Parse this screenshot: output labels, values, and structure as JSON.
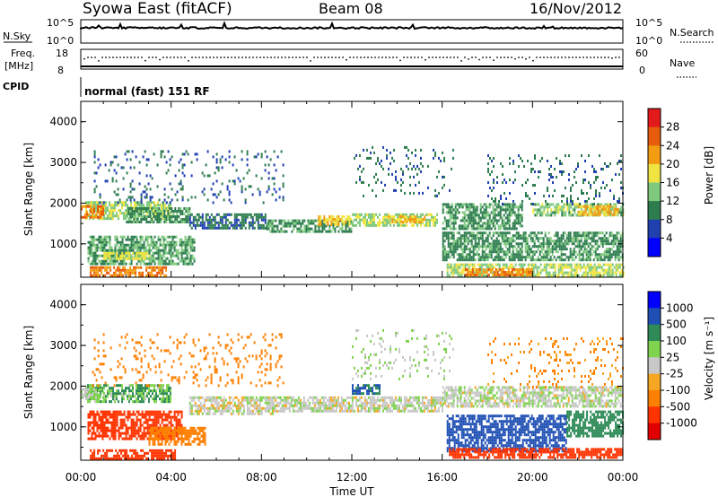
{
  "header": {
    "title": "Syowa East (fitACF)",
    "beam": "Beam 08",
    "date": "16/Nov/2012"
  },
  "nsky_panel": {
    "left_label": "N.Sky",
    "left_ticks": [
      "10^5",
      "10^0"
    ],
    "right_label": "N.Search",
    "right_ticks": [
      "10^5",
      "10^0"
    ]
  },
  "freq_panel": {
    "left_label_1": "Freq.",
    "left_label_2": "[MHz]",
    "left_ticks": [
      "18",
      "8"
    ],
    "right_label": "Nave",
    "right_ticks": [
      "60",
      "0"
    ]
  },
  "cpid": {
    "label": "CPID",
    "text": "normal (fast) 151 RF"
  },
  "colors": {
    "power_scale": [
      "#0000ff",
      "#2040b0",
      "#2e7d4f",
      "#7fc97f",
      "#f0e442",
      "#f39c12",
      "#e85a0c",
      "#e31a1c"
    ],
    "velocity_scale": [
      "#0000ff",
      "#1f4fb4",
      "#2e8b57",
      "#7fd34e",
      "#c8c8c8",
      "#f5a623",
      "#ff7f00",
      "#ff3300",
      "#e00000"
    ]
  },
  "chart_data": [
    {
      "type": "heatmap",
      "name": "power",
      "ylabel": "Slant Range [km]",
      "yticks": [
        "1000",
        "2000",
        "3000",
        "4000"
      ],
      "ylim": [
        180,
        4500
      ],
      "xticks": [
        "00:00",
        "04:00",
        "08:00",
        "12:00",
        "16:00",
        "20:00",
        "00:00"
      ],
      "colorbar_label": "Power [dB]",
      "colorbar_ticks": [
        "4",
        "8",
        "12",
        "16",
        "20",
        "24",
        "28"
      ],
      "colorbar_range": [
        0,
        30
      ],
      "regions": [
        {
          "t": [
            0.2,
            4.0
          ],
          "r": [
            1600,
            2050
          ],
          "v": 13
        },
        {
          "t": [
            0.0,
            1.0
          ],
          "r": [
            1650,
            1950
          ],
          "v": 21
        },
        {
          "t": [
            2.0,
            4.8
          ],
          "r": [
            1550,
            1900
          ],
          "v": 9
        },
        {
          "t": [
            4.8,
            8.2
          ],
          "r": [
            1400,
            1750
          ],
          "v": 7
        },
        {
          "t": [
            8.2,
            12.0
          ],
          "r": [
            1300,
            1600
          ],
          "v": 9
        },
        {
          "t": [
            12.0,
            15.8
          ],
          "r": [
            1450,
            1750
          ],
          "v": 13
        },
        {
          "t": [
            13.6,
            15.2
          ],
          "r": [
            1550,
            1700
          ],
          "v": 18
        },
        {
          "t": [
            10.5,
            12.0
          ],
          "r": [
            1500,
            1700
          ],
          "v": 17
        },
        {
          "t": [
            16.0,
            19.5
          ],
          "r": [
            1400,
            2000
          ],
          "v": 9
        },
        {
          "t": [
            20.0,
            24.0
          ],
          "r": [
            1700,
            2000
          ],
          "v": 12
        },
        {
          "t": [
            22.0,
            23.8
          ],
          "r": [
            1750,
            1950
          ],
          "v": 19
        },
        {
          "t": [
            0.3,
            5.0
          ],
          "r": [
            500,
            1200
          ],
          "v": 10
        },
        {
          "t": [
            0.4,
            3.8
          ],
          "r": [
            220,
            450
          ],
          "v": 22
        },
        {
          "t": [
            1.0,
            3.0
          ],
          "r": [
            650,
            800
          ],
          "v": 15
        },
        {
          "t": [
            16.2,
            24.0
          ],
          "r": [
            220,
            520
          ],
          "v": 14
        },
        {
          "t": [
            17.0,
            20.0
          ],
          "r": [
            260,
            400
          ],
          "v": 21
        },
        {
          "t": [
            16.0,
            24.0
          ],
          "r": [
            600,
            1300
          ],
          "v": 9
        },
        {
          "t": [
            0.5,
            9.0
          ],
          "r": [
            2000,
            3300
          ],
          "v": 6,
          "sparse": true
        },
        {
          "t": [
            12.0,
            16.5
          ],
          "r": [
            2200,
            3400
          ],
          "v": 7,
          "sparse": true
        },
        {
          "t": [
            18.0,
            24.0
          ],
          "r": [
            2000,
            3200
          ],
          "v": 7,
          "sparse": true
        }
      ]
    },
    {
      "type": "heatmap",
      "name": "velocity",
      "ylabel": "Slant Range [km]",
      "yticks": [
        "1000",
        "2000",
        "3000",
        "4000"
      ],
      "ylim": [
        180,
        4500
      ],
      "xticks": [
        "00:00",
        "04:00",
        "08:00",
        "12:00",
        "16:00",
        "20:00",
        "00:00"
      ],
      "xlabel": "Time UT",
      "colorbar_label": "Velocity [m s⁻¹]",
      "colorbar_ticks": [
        "1000",
        "500",
        "100",
        "25",
        "-25",
        "-100",
        "-500",
        "-1000"
      ],
      "regions": [
        {
          "t": [
            0.2,
            4.0
          ],
          "r": [
            1600,
            2050
          ],
          "v": 60
        },
        {
          "t": [
            0.0,
            1.0
          ],
          "r": [
            1700,
            1950
          ],
          "v": 20
        },
        {
          "t": [
            0.3,
            4.5
          ],
          "r": [
            700,
            1400
          ],
          "v": -400
        },
        {
          "t": [
            0.4,
            4.2
          ],
          "r": [
            220,
            450
          ],
          "v": -500
        },
        {
          "t": [
            3.0,
            5.5
          ],
          "r": [
            600,
            1000
          ],
          "v": -150
        },
        {
          "t": [
            4.8,
            8.5
          ],
          "r": [
            1350,
            1750
          ],
          "v": 0
        },
        {
          "t": [
            8.5,
            16.0
          ],
          "r": [
            1400,
            1750
          ],
          "v": 5
        },
        {
          "t": [
            12.0,
            13.2
          ],
          "r": [
            1850,
            2050
          ],
          "v": 300
        },
        {
          "t": [
            16.0,
            24.0
          ],
          "r": [
            1500,
            2000
          ],
          "v": 10
        },
        {
          "t": [
            16.2,
            21.5
          ],
          "r": [
            400,
            1300
          ],
          "v": 600
        },
        {
          "t": [
            21.5,
            24.0
          ],
          "r": [
            800,
            1400
          ],
          "v": 200
        },
        {
          "t": [
            16.3,
            24.0
          ],
          "r": [
            220,
            480
          ],
          "v": -600
        },
        {
          "t": [
            0.5,
            9.0
          ],
          "r": [
            2000,
            3300
          ],
          "v": -200,
          "sparse": true
        },
        {
          "t": [
            12.0,
            16.5
          ],
          "r": [
            2200,
            3400
          ],
          "v": 20,
          "sparse": true
        },
        {
          "t": [
            18.0,
            24.0
          ],
          "r": [
            2000,
            3200
          ],
          "v": -80,
          "sparse": true
        }
      ]
    }
  ]
}
